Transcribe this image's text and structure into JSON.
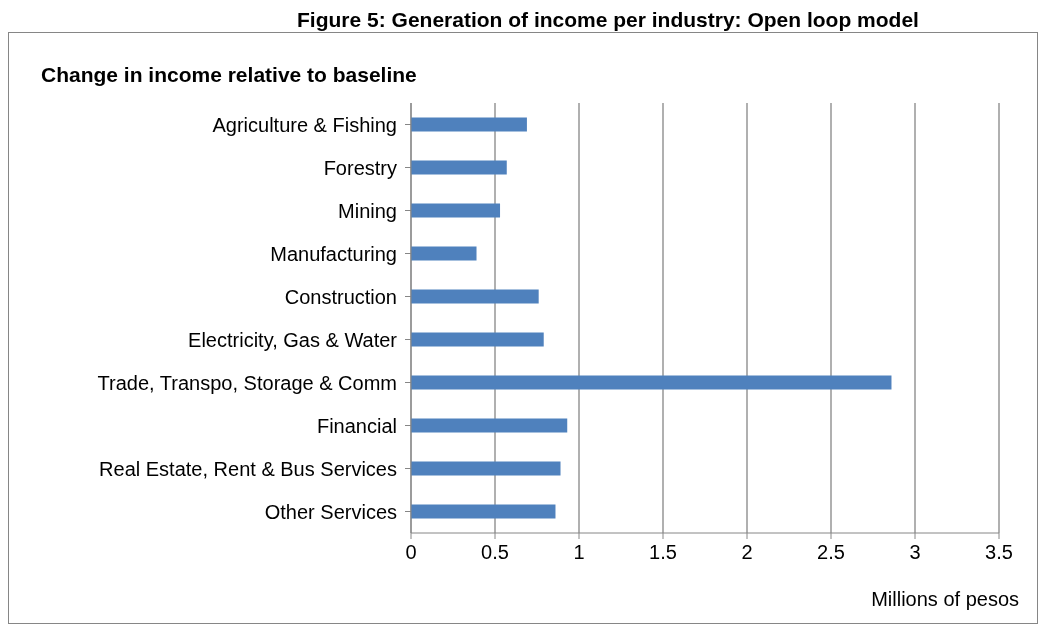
{
  "chart_data": {
    "type": "bar",
    "orientation": "horizontal",
    "title": "Figure 5: Generation of income per industry: Open loop model",
    "subtitle": "Change in income relative to baseline",
    "xlabel": "Millions of pesos",
    "categories": [
      "Agriculture & Fishing",
      "Forestry",
      "Mining",
      "Manufacturing",
      "Construction",
      "Electricity, Gas & Water",
      "Trade, Transpo, Storage & Comm",
      "Financial",
      "Real Estate, Rent & Bus Services",
      "Other Services"
    ],
    "values": [
      0.69,
      0.57,
      0.53,
      0.39,
      0.76,
      0.79,
      2.86,
      0.93,
      0.89,
      0.86
    ],
    "color": "#4f81bd",
    "xlim": [
      0,
      3.5
    ],
    "xticks": [
      0,
      0.5,
      1,
      1.5,
      2,
      2.5,
      3,
      3.5
    ],
    "grid": "x"
  }
}
